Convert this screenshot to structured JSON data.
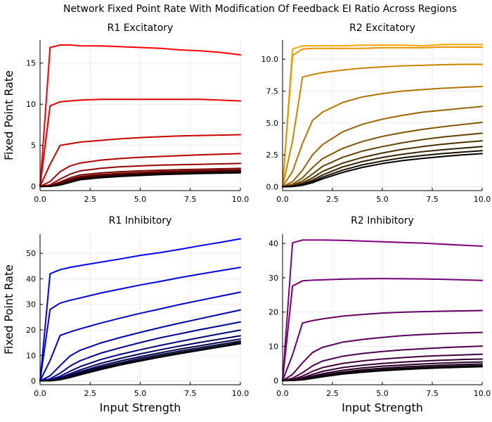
{
  "figure": {
    "suptitle": "Network Fixed Point Rate With Modification Of Feedback EI Ratio Across Regions"
  },
  "chart_data": [
    {
      "type": "line",
      "title": "R1 Excitatory",
      "xlabel": "",
      "ylabel": "Fixed Point Rate",
      "xlim": [
        0,
        10
      ],
      "ylim": [
        -0.5,
        17.8
      ],
      "xticks": [
        0,
        2.5,
        5,
        7.5,
        10
      ],
      "xtick_labels": [
        "0.0",
        "2.5",
        "5.0",
        "7.5",
        "10.0"
      ],
      "yticks": [
        0,
        5,
        10,
        15
      ],
      "ytick_labels": [
        "0",
        "5",
        "10",
        "15"
      ],
      "grid": true,
      "legend": "none",
      "x": [
        0,
        0.5,
        1,
        1.5,
        2,
        3,
        4,
        5,
        6,
        7,
        8,
        9,
        10
      ],
      "series": [
        {
          "color": "#ff0000",
          "values": [
            0,
            16.9,
            17.2,
            17.2,
            17.1,
            17.1,
            17.0,
            16.9,
            16.8,
            16.6,
            16.5,
            16.3,
            16.0
          ]
        },
        {
          "color": "#e60000",
          "values": [
            0,
            9.8,
            10.3,
            10.4,
            10.5,
            10.6,
            10.6,
            10.6,
            10.6,
            10.6,
            10.6,
            10.5,
            10.4
          ]
        },
        {
          "color": "#cc0000",
          "values": [
            0,
            2.7,
            5.0,
            5.2,
            5.4,
            5.6,
            5.8,
            5.95,
            6.05,
            6.15,
            6.2,
            6.25,
            6.3
          ]
        },
        {
          "color": "#b30000",
          "values": [
            0,
            0.6,
            1.8,
            2.5,
            2.85,
            3.2,
            3.4,
            3.55,
            3.65,
            3.75,
            3.85,
            3.92,
            4.0
          ]
        },
        {
          "color": "#990000",
          "values": [
            0,
            0.2,
            0.9,
            1.5,
            1.9,
            2.2,
            2.4,
            2.5,
            2.6,
            2.65,
            2.7,
            2.75,
            2.8
          ]
        },
        {
          "color": "#800000",
          "values": [
            0,
            0.1,
            0.55,
            1.05,
            1.4,
            1.65,
            1.8,
            1.9,
            1.98,
            2.05,
            2.1,
            2.15,
            2.2
          ]
        },
        {
          "color": "#660000",
          "values": [
            0,
            0.05,
            0.4,
            0.85,
            1.2,
            1.45,
            1.6,
            1.7,
            1.8,
            1.87,
            1.92,
            1.97,
            2.02
          ]
        },
        {
          "color": "#4d0000",
          "values": [
            0,
            0.03,
            0.3,
            0.72,
            1.05,
            1.3,
            1.45,
            1.57,
            1.66,
            1.73,
            1.79,
            1.84,
            1.89
          ]
        },
        {
          "color": "#330000",
          "values": [
            0,
            0.02,
            0.25,
            0.63,
            0.95,
            1.2,
            1.36,
            1.48,
            1.57,
            1.64,
            1.7,
            1.75,
            1.8
          ]
        },
        {
          "color": "#1a0000",
          "values": [
            0,
            0.01,
            0.2,
            0.55,
            0.88,
            1.12,
            1.28,
            1.4,
            1.5,
            1.57,
            1.63,
            1.68,
            1.72
          ]
        },
        {
          "color": "#000000",
          "values": [
            0,
            0.01,
            0.17,
            0.5,
            0.82,
            1.06,
            1.22,
            1.34,
            1.44,
            1.51,
            1.57,
            1.62,
            1.66
          ]
        }
      ]
    },
    {
      "type": "line",
      "title": "R2 Excitatory",
      "xlabel": "",
      "ylabel": "",
      "xlim": [
        0,
        10
      ],
      "ylim": [
        -0.3,
        11.5
      ],
      "xticks": [
        0,
        2.5,
        5,
        7.5,
        10
      ],
      "xtick_labels": [
        "0.0",
        "2.5",
        "5.0",
        "7.5",
        "10.0"
      ],
      "yticks": [
        0,
        2.5,
        5,
        7.5,
        10
      ],
      "ytick_labels": [
        "0.0",
        "2.5",
        "5.0",
        "7.5",
        "10.0"
      ],
      "grid": true,
      "legend": "none",
      "x": [
        0,
        0.5,
        1,
        1.5,
        2,
        3,
        4,
        5,
        6,
        7,
        8,
        9,
        10
      ],
      "series": [
        {
          "color": "#ffa500",
          "values": [
            0,
            10.8,
            11.05,
            11.05,
            11.05,
            11.05,
            11.1,
            11.1,
            11.1,
            11.05,
            11.15,
            11.15,
            11.15
          ]
        },
        {
          "color": "#e69500",
          "values": [
            0,
            10.3,
            10.8,
            10.85,
            10.85,
            10.85,
            10.85,
            10.9,
            10.9,
            10.9,
            10.95,
            10.95,
            10.95
          ]
        },
        {
          "color": "#cc8400",
          "values": [
            0,
            3.6,
            8.6,
            8.8,
            8.95,
            9.15,
            9.3,
            9.4,
            9.48,
            9.52,
            9.57,
            9.6,
            9.6
          ]
        },
        {
          "color": "#b37300",
          "values": [
            0,
            1.2,
            3.4,
            5.2,
            5.85,
            6.6,
            7.05,
            7.3,
            7.5,
            7.62,
            7.72,
            7.8,
            7.86
          ]
        },
        {
          "color": "#996300",
          "values": [
            0,
            0.4,
            1.3,
            2.5,
            3.3,
            4.3,
            4.9,
            5.3,
            5.6,
            5.85,
            6.0,
            6.15,
            6.3
          ]
        },
        {
          "color": "#805200",
          "values": [
            0,
            0.2,
            0.7,
            1.5,
            2.2,
            3.0,
            3.55,
            3.95,
            4.25,
            4.5,
            4.7,
            4.88,
            5.05
          ]
        },
        {
          "color": "#664200",
          "values": [
            0,
            0.12,
            0.45,
            1.0,
            1.6,
            2.3,
            2.8,
            3.15,
            3.45,
            3.7,
            3.9,
            4.05,
            4.2
          ]
        },
        {
          "color": "#4d3100",
          "values": [
            0,
            0.08,
            0.3,
            0.7,
            1.2,
            1.85,
            2.3,
            2.65,
            2.93,
            3.15,
            3.33,
            3.48,
            3.6
          ]
        },
        {
          "color": "#332100",
          "values": [
            0,
            0.05,
            0.22,
            0.52,
            0.92,
            1.55,
            1.98,
            2.3,
            2.55,
            2.75,
            2.9,
            3.03,
            3.15
          ]
        },
        {
          "color": "#1a1000",
          "values": [
            0,
            0.03,
            0.16,
            0.4,
            0.75,
            1.3,
            1.72,
            2.02,
            2.27,
            2.45,
            2.6,
            2.72,
            2.83
          ]
        },
        {
          "color": "#000000",
          "values": [
            0,
            0.02,
            0.12,
            0.32,
            0.62,
            1.12,
            1.52,
            1.82,
            2.05,
            2.22,
            2.37,
            2.5,
            2.6
          ]
        }
      ]
    },
    {
      "type": "line",
      "title": "R1 Inhibitory",
      "xlabel": "Input Strength",
      "ylabel": "Fixed Point Rate",
      "xlim": [
        0,
        10
      ],
      "ylim": [
        -1.5,
        57.5
      ],
      "xticks": [
        0,
        2.5,
        5,
        7.5,
        10
      ],
      "xtick_labels": [
        "0.0",
        "2.5",
        "5.0",
        "7.5",
        "10.0"
      ],
      "yticks": [
        0,
        10,
        20,
        30,
        40,
        50
      ],
      "ytick_labels": [
        "0",
        "10",
        "20",
        "30",
        "40",
        "50"
      ],
      "grid": true,
      "legend": "none",
      "x": [
        0,
        0.5,
        1,
        1.5,
        2,
        3,
        4,
        5,
        6,
        7,
        8,
        9,
        10
      ],
      "series": [
        {
          "color": "#0000ff",
          "values": [
            0,
            42.0,
            43.6,
            44.5,
            45.2,
            46.5,
            47.8,
            49.2,
            50.3,
            51.6,
            53.0,
            54.3,
            55.7
          ]
        },
        {
          "color": "#0000e6",
          "values": [
            0,
            28.0,
            30.5,
            31.6,
            32.5,
            34.4,
            36.0,
            37.6,
            39.0,
            40.5,
            41.9,
            43.2,
            44.5
          ]
        },
        {
          "color": "#0000cc",
          "values": [
            0,
            8.0,
            17.8,
            19.2,
            20.4,
            22.6,
            24.6,
            26.5,
            28.2,
            30.0,
            31.6,
            33.2,
            34.8
          ]
        },
        {
          "color": "#0000b3",
          "values": [
            0,
            2.0,
            6.0,
            9.8,
            12.0,
            14.8,
            17.0,
            19.0,
            20.9,
            22.7,
            24.4,
            26.1,
            27.8
          ]
        },
        {
          "color": "#000099",
          "values": [
            0,
            0.8,
            3.0,
            5.8,
            7.9,
            10.8,
            13.0,
            15.0,
            16.9,
            18.5,
            20.1,
            21.6,
            23.1
          ]
        },
        {
          "color": "#000080",
          "values": [
            0,
            0.4,
            1.8,
            3.8,
            5.6,
            8.3,
            10.4,
            12.2,
            13.9,
            15.5,
            17.0,
            18.5,
            19.9
          ]
        },
        {
          "color": "#000066",
          "values": [
            0,
            0.2,
            1.2,
            2.8,
            4.3,
            6.8,
            8.8,
            10.6,
            12.2,
            13.7,
            15.1,
            16.4,
            17.7
          ]
        },
        {
          "color": "#00004d",
          "values": [
            0,
            0.1,
            0.9,
            2.2,
            3.6,
            5.9,
            7.8,
            9.5,
            11.0,
            12.5,
            13.8,
            15.1,
            16.4
          ]
        },
        {
          "color": "#000033",
          "values": [
            0,
            0.06,
            0.7,
            1.8,
            3.1,
            5.3,
            7.1,
            8.8,
            10.3,
            11.7,
            13.0,
            14.3,
            15.6
          ]
        },
        {
          "color": "#00001a",
          "values": [
            0,
            0.04,
            0.55,
            1.5,
            2.7,
            4.8,
            6.6,
            8.2,
            9.7,
            11.1,
            12.4,
            13.7,
            15.0
          ]
        },
        {
          "color": "#000000",
          "values": [
            0,
            0.03,
            0.45,
            1.3,
            2.4,
            4.4,
            6.2,
            7.8,
            9.3,
            10.7,
            12.0,
            13.3,
            14.6
          ]
        }
      ]
    },
    {
      "type": "line",
      "title": "R2 Inhibitory",
      "xlabel": "Input Strength",
      "ylabel": "",
      "xlim": [
        0,
        10
      ],
      "ylim": [
        -1.2,
        42.7
      ],
      "xticks": [
        0,
        2.5,
        5,
        7.5,
        10
      ],
      "xtick_labels": [
        "0.0",
        "2.5",
        "5.0",
        "7.5",
        "10.0"
      ],
      "yticks": [
        0,
        10,
        20,
        30,
        40
      ],
      "ytick_labels": [
        "0",
        "10",
        "20",
        "30",
        "40"
      ],
      "grid": true,
      "legend": "none",
      "x": [
        0,
        0.5,
        1,
        1.5,
        2,
        3,
        4,
        5,
        6,
        7,
        8,
        9,
        10
      ],
      "series": [
        {
          "color": "#800080",
          "values": [
            0,
            40.2,
            41.0,
            41.0,
            41.0,
            40.9,
            40.7,
            40.5,
            40.3,
            40.1,
            39.8,
            39.5,
            39.2
          ]
        },
        {
          "color": "#730073",
          "values": [
            0,
            27.6,
            29.1,
            29.3,
            29.4,
            29.6,
            29.7,
            29.75,
            29.7,
            29.65,
            29.55,
            29.4,
            29.2
          ]
        },
        {
          "color": "#660066",
          "values": [
            0,
            7.5,
            16.8,
            17.5,
            18.0,
            18.8,
            19.3,
            19.7,
            19.95,
            20.1,
            20.25,
            20.35,
            20.45
          ]
        },
        {
          "color": "#5a005a",
          "values": [
            0,
            1.8,
            5.2,
            8.2,
            9.7,
            11.2,
            12.0,
            12.6,
            13.1,
            13.45,
            13.7,
            13.9,
            14.05
          ]
        },
        {
          "color": "#4d004d",
          "values": [
            0,
            0.7,
            2.3,
            4.3,
            5.7,
            7.1,
            7.9,
            8.5,
            8.95,
            9.3,
            9.6,
            9.85,
            10.05
          ]
        },
        {
          "color": "#400040",
          "values": [
            0,
            0.35,
            1.3,
            2.7,
            3.8,
            5.0,
            5.75,
            6.3,
            6.7,
            7.05,
            7.3,
            7.5,
            7.7
          ]
        },
        {
          "color": "#330033",
          "values": [
            0,
            0.2,
            0.8,
            1.8,
            2.7,
            3.8,
            4.5,
            5.0,
            5.4,
            5.7,
            5.95,
            6.15,
            6.3
          ]
        },
        {
          "color": "#260026",
          "values": [
            0,
            0.12,
            0.55,
            1.3,
            2.0,
            3.0,
            3.7,
            4.2,
            4.55,
            4.85,
            5.1,
            5.3,
            5.45
          ]
        },
        {
          "color": "#1a001a",
          "values": [
            0,
            0.08,
            0.4,
            1.0,
            1.6,
            2.5,
            3.15,
            3.62,
            3.98,
            4.27,
            4.5,
            4.7,
            4.85
          ]
        },
        {
          "color": "#0d000d",
          "values": [
            0,
            0.05,
            0.3,
            0.8,
            1.3,
            2.15,
            2.75,
            3.2,
            3.55,
            3.83,
            4.05,
            4.25,
            4.4
          ]
        },
        {
          "color": "#000000",
          "values": [
            0,
            0.03,
            0.23,
            0.65,
            1.1,
            1.9,
            2.45,
            2.88,
            3.22,
            3.5,
            3.72,
            3.9,
            4.05
          ]
        }
      ]
    }
  ]
}
